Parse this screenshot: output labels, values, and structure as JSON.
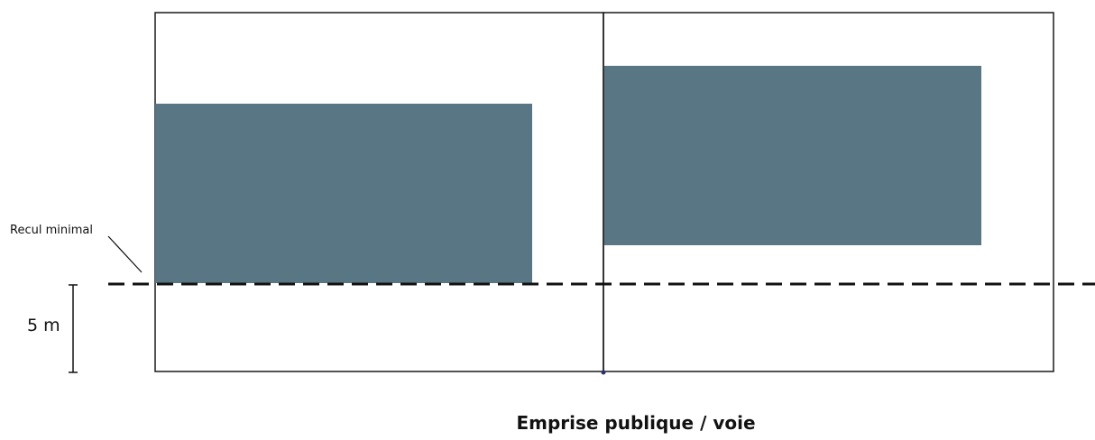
{
  "labels": {
    "setback": "Recul minimal",
    "distance": "5 m",
    "public_way": "Emprise publique / voie"
  },
  "colors": {
    "building": "#587684",
    "outline": "#1a1a1a",
    "dash": "#111111",
    "marker": "#2a3070",
    "background": "#ffffff"
  }
}
